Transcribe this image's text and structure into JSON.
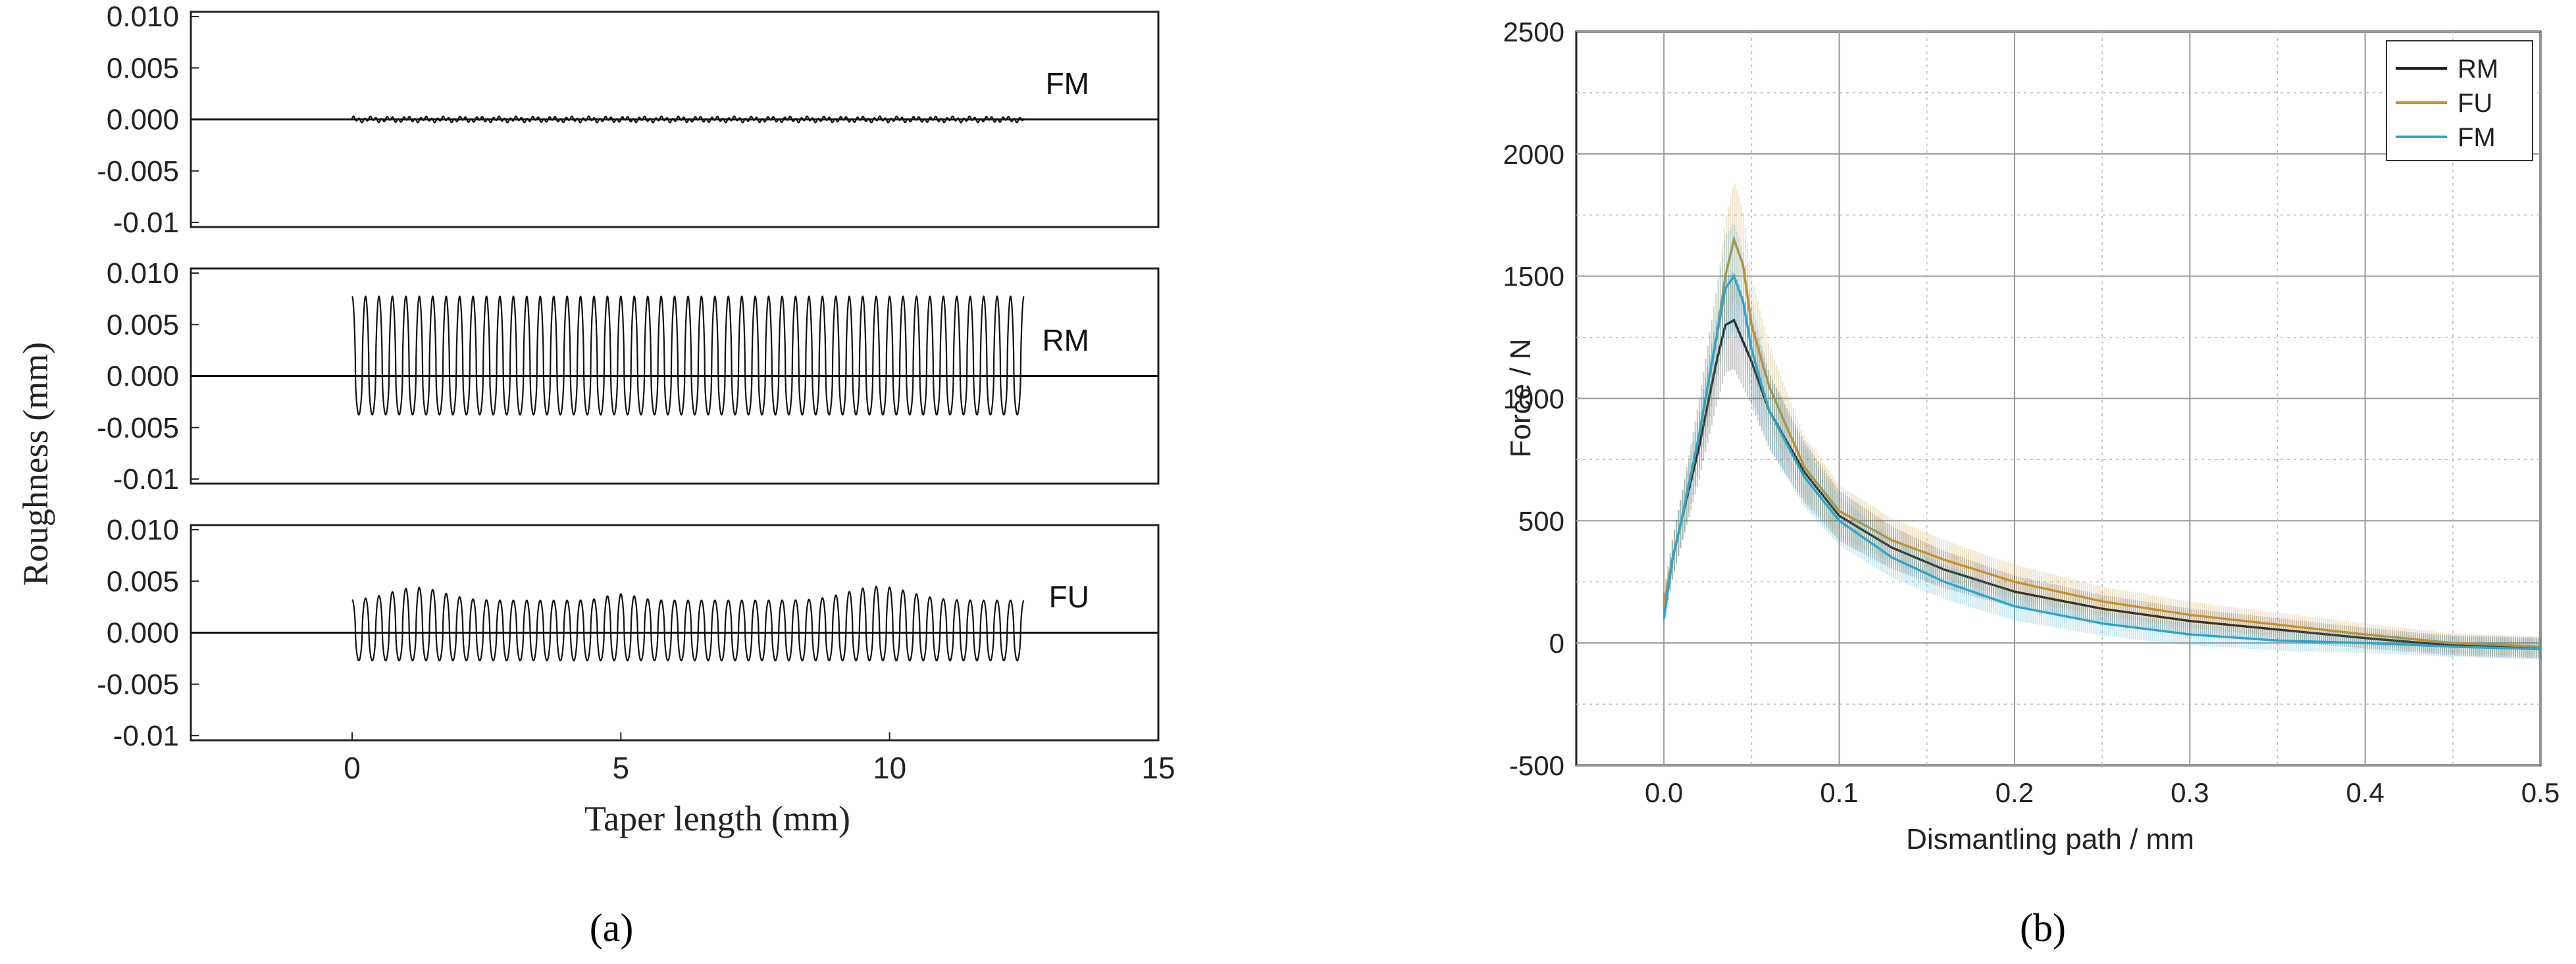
{
  "figure": {
    "label_a": "(a)",
    "label_b": "(b)"
  },
  "chart_data": [
    {
      "type": "line",
      "panel": "a",
      "ylabel": "Roughness (mm)",
      "xlabel": "Taper length (mm)",
      "xlim": [
        -3,
        15
      ],
      "xticks": [
        0,
        5,
        10,
        15
      ],
      "ytick_labels": [
        "0.010",
        "0.005",
        "0.000",
        "-0.005",
        "-0.01"
      ],
      "ylim": [
        -0.01,
        0.01
      ],
      "grid": false,
      "series": [
        {
          "name": "FM",
          "x_range": [
            0,
            12.5
          ],
          "cycles": 120,
          "amplitude": 0.0003,
          "offset": 0.0
        },
        {
          "name": "RM",
          "x_range": [
            0,
            12.5
          ],
          "cycles": 50,
          "peak": 0.0074,
          "trough": -0.0036
        },
        {
          "name": "FU",
          "x_range": [
            0,
            12.5
          ],
          "cycles": 50,
          "peak": 0.004,
          "trough": -0.0026,
          "peak_max": 0.0052
        }
      ]
    },
    {
      "type": "line",
      "panel": "b",
      "xlabel": "Dismantling path / mm",
      "ylabel": "Force / N",
      "xlim": [
        -0.05,
        0.5
      ],
      "ylim": [
        -500,
        2500
      ],
      "xticks": [
        0.0,
        0.1,
        0.2,
        0.3,
        0.4,
        0.5
      ],
      "xtick_labels": [
        "0.0",
        "0.1",
        "0.2",
        "0.3",
        "0.4",
        "0.5"
      ],
      "yticks": [
        -500,
        0,
        500,
        1000,
        1500,
        2000,
        2500
      ],
      "grid": true,
      "legend": "top-right",
      "series": [
        {
          "name": "RM",
          "color": "#222222",
          "x": [
            0.0,
            0.005,
            0.01,
            0.02,
            0.03,
            0.035,
            0.04,
            0.05,
            0.06,
            0.08,
            0.1,
            0.13,
            0.16,
            0.2,
            0.25,
            0.3,
            0.35,
            0.4,
            0.45,
            0.5
          ],
          "y": [
            150,
            350,
            500,
            800,
            1150,
            1300,
            1320,
            1150,
            950,
            700,
            520,
            390,
            300,
            210,
            140,
            90,
            55,
            20,
            -10,
            -20
          ]
        },
        {
          "name": "FU",
          "color": "#c8902a",
          "x": [
            0.0,
            0.005,
            0.01,
            0.02,
            0.03,
            0.035,
            0.04,
            0.045,
            0.05,
            0.06,
            0.08,
            0.1,
            0.13,
            0.16,
            0.2,
            0.25,
            0.3,
            0.35,
            0.4,
            0.45,
            0.5
          ],
          "y": [
            150,
            350,
            500,
            850,
            1250,
            1500,
            1650,
            1550,
            1300,
            1050,
            720,
            540,
            420,
            340,
            250,
            170,
            115,
            75,
            35,
            0,
            -15
          ]
        },
        {
          "name": "FM",
          "color": "#2aa6cf",
          "x": [
            0.0,
            0.005,
            0.01,
            0.02,
            0.03,
            0.035,
            0.04,
            0.045,
            0.05,
            0.06,
            0.08,
            0.1,
            0.13,
            0.16,
            0.2,
            0.25,
            0.3,
            0.35,
            0.4,
            0.45,
            0.5
          ],
          "y": [
            100,
            350,
            500,
            850,
            1250,
            1450,
            1500,
            1400,
            1200,
            950,
            680,
            500,
            350,
            250,
            150,
            80,
            35,
            10,
            0,
            -15,
            -25
          ]
        }
      ]
    }
  ]
}
